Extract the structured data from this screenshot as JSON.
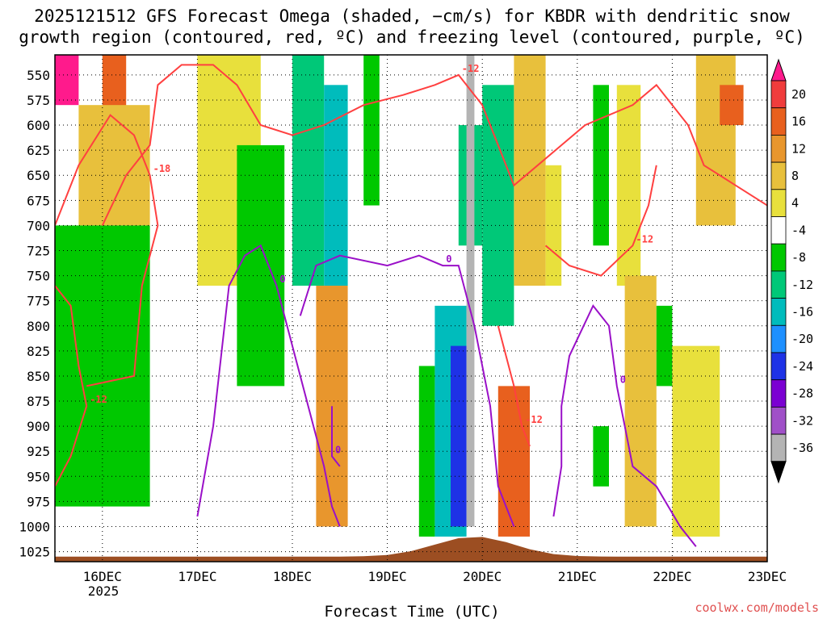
{
  "chart_data": {
    "type": "heatmap",
    "title_line1": "2025121512 GFS Forecast Omega (shaded, −cm/s) for KBDR with dendritic snow",
    "title_line2": "growth region (contoured, red, ºC) and freezing level (contoured, purple, ºC)",
    "xlabel": "Forecast Time (UTC)",
    "credit": "coolwx.com/models",
    "x_ticks": [
      "16DEC",
      "17DEC",
      "18DEC",
      "19DEC",
      "20DEC",
      "21DEC",
      "22DEC",
      "23DEC"
    ],
    "x_year_label": "2025",
    "y_ticks": [
      "550",
      "575",
      "600",
      "625",
      "650",
      "675",
      "700",
      "725",
      "750",
      "775",
      "800",
      "825",
      "850",
      "875",
      "900",
      "925",
      "950",
      "975",
      "1000",
      "1025"
    ],
    "x_range_hours": [
      -12,
      168
    ],
    "y_range_hpa": [
      530,
      1035
    ],
    "colorbar": {
      "labels": [
        "20",
        "16",
        "12",
        "8",
        "4",
        "-4",
        "-8",
        "-12",
        "-16",
        "-20",
        "-24",
        "-28",
        "-32",
        "-36"
      ],
      "colors": [
        "#ff1a8c",
        "#f03c3c",
        "#e8601e",
        "#e8962d",
        "#e8c03c",
        "#e8e03c",
        "#ffffff",
        "#00c800",
        "#00c878",
        "#00bcbc",
        "#1e90ff",
        "#1e32e6",
        "#7b00d2",
        "#a050c8",
        "#b4b4b4",
        "#000000"
      ]
    },
    "omega_cells": [
      {
        "t": [
          0,
          6
        ],
        "p": [
          530,
          620
        ],
        "v": 14
      },
      {
        "t": [
          -12,
          -6
        ],
        "p": [
          530,
          580
        ],
        "v": 22
      },
      {
        "t": [
          -6,
          12
        ],
        "p": [
          580,
          700
        ],
        "v": 6
      },
      {
        "t": [
          -12,
          12
        ],
        "p": [
          700,
          980
        ],
        "v": -6
      },
      {
        "t": [
          24,
          40
        ],
        "p": [
          530,
          760
        ],
        "v": 5
      },
      {
        "t": [
          34,
          46
        ],
        "p": [
          620,
          860
        ],
        "v": -6
      },
      {
        "t": [
          48,
          56
        ],
        "p": [
          530,
          760
        ],
        "v": -8
      },
      {
        "t": [
          56,
          62
        ],
        "p": [
          560,
          760
        ],
        "v": -12
      },
      {
        "t": [
          54,
          62
        ],
        "p": [
          760,
          1000
        ],
        "v": 10
      },
      {
        "t": [
          66,
          70
        ],
        "p": [
          530,
          680
        ],
        "v": -6
      },
      {
        "t": [
          80,
          84
        ],
        "p": [
          840,
          1010
        ],
        "v": -6
      },
      {
        "t": [
          84,
          92
        ],
        "p": [
          780,
          1010
        ],
        "v": -12
      },
      {
        "t": [
          88,
          92
        ],
        "p": [
          820,
          1000
        ],
        "v": -20
      },
      {
        "t": [
          90,
          96
        ],
        "p": [
          600,
          720
        ],
        "v": -8
      },
      {
        "t": [
          92,
          94
        ],
        "p": [
          530,
          1000
        ],
        "v": -34
      },
      {
        "t": [
          96,
          104
        ],
        "p": [
          560,
          800
        ],
        "v": -8
      },
      {
        "t": [
          100,
          108
        ],
        "p": [
          860,
          1010
        ],
        "v": 12
      },
      {
        "t": [
          104,
          112
        ],
        "p": [
          530,
          760
        ],
        "v": 6
      },
      {
        "t": [
          112,
          116
        ],
        "p": [
          640,
          760
        ],
        "v": 5
      },
      {
        "t": [
          124,
          128
        ],
        "p": [
          560,
          720
        ],
        "v": -6
      },
      {
        "t": [
          130,
          136
        ],
        "p": [
          560,
          760
        ],
        "v": 5
      },
      {
        "t": [
          132,
          140
        ],
        "p": [
          750,
          1000
        ],
        "v": 7
      },
      {
        "t": [
          140,
          144
        ],
        "p": [
          780,
          860
        ],
        "v": -6
      },
      {
        "t": [
          144,
          156
        ],
        "p": [
          820,
          1010
        ],
        "v": 5
      },
      {
        "t": [
          150,
          160
        ],
        "p": [
          530,
          700
        ],
        "v": 6
      },
      {
        "t": [
          156,
          162
        ],
        "p": [
          560,
          600
        ],
        "v": 12
      },
      {
        "t": [
          124,
          128
        ],
        "p": [
          900,
          960
        ],
        "v": -6
      }
    ],
    "contours": [
      {
        "label": "-12",
        "color": "red",
        "points": [
          [
            -12,
            760
          ],
          [
            -8,
            780
          ],
          [
            -6,
            840
          ],
          [
            -4,
            880
          ],
          [
            -8,
            930
          ],
          [
            -12,
            960
          ]
        ]
      },
      {
        "label": "-18",
        "color": "red",
        "points": [
          [
            -12,
            700
          ],
          [
            -6,
            640
          ],
          [
            2,
            590
          ],
          [
            8,
            610
          ],
          [
            12,
            650
          ],
          [
            14,
            700
          ],
          [
            10,
            760
          ],
          [
            8,
            850
          ],
          [
            -4,
            860
          ]
        ]
      },
      {
        "label": "-12",
        "color": "red",
        "points": [
          [
            0,
            700
          ],
          [
            6,
            650
          ],
          [
            12,
            620
          ],
          [
            14,
            560
          ],
          [
            20,
            540
          ],
          [
            28,
            540
          ],
          [
            34,
            560
          ],
          [
            40,
            600
          ],
          [
            48,
            610
          ],
          [
            56,
            600
          ],
          [
            66,
            580
          ],
          [
            76,
            570
          ],
          [
            84,
            560
          ],
          [
            90,
            550
          ],
          [
            96,
            580
          ],
          [
            100,
            620
          ],
          [
            104,
            660
          ],
          [
            110,
            640
          ],
          [
            116,
            620
          ],
          [
            122,
            600
          ],
          [
            128,
            590
          ],
          [
            134,
            580
          ],
          [
            140,
            560
          ],
          [
            148,
            600
          ],
          [
            152,
            640
          ],
          [
            160,
            660
          ],
          [
            168,
            680
          ]
        ]
      },
      {
        "label": "-12",
        "color": "red",
        "points": [
          [
            112,
            720
          ],
          [
            118,
            740
          ],
          [
            126,
            750
          ],
          [
            134,
            720
          ],
          [
            138,
            680
          ],
          [
            140,
            640
          ]
        ]
      },
      {
        "label": "-12",
        "color": "red",
        "points": [
          [
            100,
            800
          ],
          [
            104,
            860
          ],
          [
            106,
            900
          ],
          [
            108,
            920
          ]
        ]
      },
      {
        "label": "0",
        "color": "purple",
        "points": [
          [
            24,
            990
          ],
          [
            28,
            900
          ],
          [
            30,
            830
          ],
          [
            32,
            760
          ],
          [
            36,
            730
          ],
          [
            40,
            720
          ],
          [
            44,
            760
          ],
          [
            48,
            820
          ],
          [
            52,
            880
          ],
          [
            56,
            940
          ],
          [
            58,
            980
          ],
          [
            60,
            1000
          ]
        ]
      },
      {
        "label": "0",
        "color": "purple",
        "points": [
          [
            50,
            790
          ],
          [
            54,
            740
          ],
          [
            60,
            730
          ],
          [
            72,
            740
          ],
          [
            80,
            730
          ],
          [
            86,
            740
          ],
          [
            90,
            740
          ],
          [
            94,
            800
          ],
          [
            98,
            880
          ],
          [
            100,
            960
          ],
          [
            104,
            1000
          ]
        ]
      },
      {
        "label": "0",
        "color": "purple",
        "points": [
          [
            114,
            990
          ],
          [
            116,
            940
          ],
          [
            116,
            880
          ],
          [
            118,
            830
          ],
          [
            124,
            780
          ],
          [
            128,
            800
          ],
          [
            130,
            860
          ],
          [
            132,
            900
          ],
          [
            134,
            940
          ],
          [
            140,
            960
          ],
          [
            146,
            1000
          ],
          [
            150,
            1020
          ]
        ]
      },
      {
        "label": "0",
        "color": "purple",
        "points": [
          [
            58,
            880
          ],
          [
            58,
            930
          ],
          [
            60,
            940
          ]
        ]
      }
    ]
  }
}
